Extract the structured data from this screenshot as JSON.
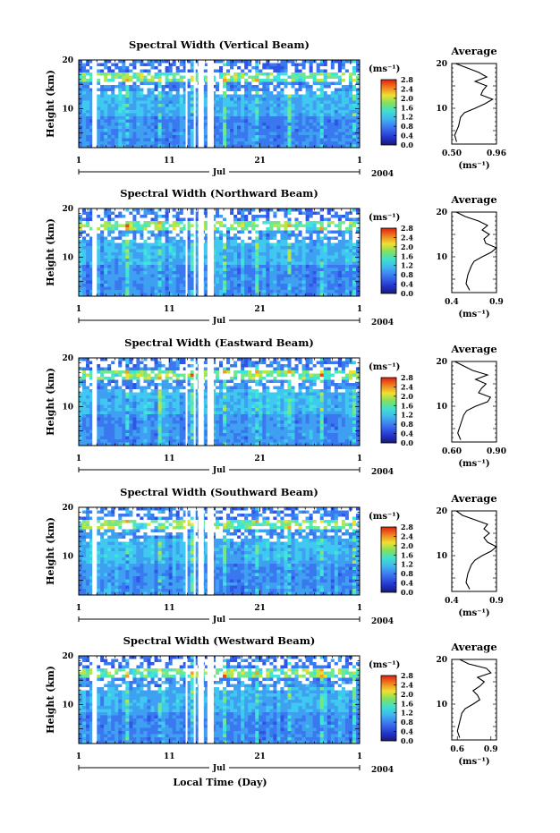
{
  "figure": {
    "xlabel": "Local Time (Day)",
    "month": "Jul",
    "year": "2004",
    "day_ticks": [
      "1",
      "11",
      "21",
      "1"
    ],
    "height_ticks": [
      "10",
      "20"
    ],
    "colorbar_unit": "(ms⁻¹)",
    "colorbar_ticks": [
      "0.0",
      "0.4",
      "0.8",
      "1.2",
      "1.6",
      "2.0",
      "2.4",
      "2.8"
    ],
    "average_title": "Average",
    "average_unit": "(ms⁻¹)"
  },
  "chart_data": [
    {
      "type": "heatmap",
      "title": "Spectral Width (Vertical Beam)",
      "ylabel": "Height (km)",
      "xlim_days": [
        1,
        32
      ],
      "ylim_km": [
        2,
        20
      ],
      "colorbar_range": [
        0.0,
        2.8
      ],
      "colormap": "dark blue - blue - cyan - green - yellow - orange - red",
      "data_gaps_days": [
        [
          2.5,
          3.0
        ],
        [
          12.8,
          13.0
        ],
        [
          13.7,
          13.9
        ],
        [
          14.2,
          14.8
        ],
        [
          15.2,
          15.9
        ]
      ],
      "average_profile": {
        "title": "Average",
        "xlabel": "(ms⁻¹)",
        "xticks": [
          "0.50",
          "0.96"
        ],
        "xlim": [
          0.5,
          0.96
        ],
        "height_km": [
          2.5,
          4,
          6,
          8,
          9,
          10,
          11,
          12,
          13,
          14,
          15,
          16,
          17,
          18,
          19,
          20
        ],
        "value": [
          0.55,
          0.53,
          0.57,
          0.59,
          0.63,
          0.74,
          0.84,
          0.92,
          0.8,
          0.82,
          0.86,
          0.74,
          0.86,
          0.78,
          0.66,
          0.54
        ]
      }
    },
    {
      "type": "heatmap",
      "title": "Spectral Width (Northward Beam)",
      "ylabel": "Height (km)",
      "xlim_days": [
        1,
        32
      ],
      "ylim_km": [
        2,
        20
      ],
      "colorbar_range": [
        0.0,
        2.8
      ],
      "data_gaps_days": [
        [
          2.5,
          3.0
        ],
        [
          12.8,
          13.0
        ],
        [
          13.7,
          13.9
        ],
        [
          14.2,
          14.8
        ],
        [
          15.2,
          15.9
        ]
      ],
      "average_profile": {
        "title": "Average",
        "xlabel": "(ms⁻¹)",
        "xticks": [
          "0.4",
          "0.9"
        ],
        "xlim": [
          0.4,
          0.9
        ],
        "height_km": [
          2.5,
          4,
          6,
          8,
          9,
          10,
          11,
          12,
          13,
          14,
          15,
          16,
          17,
          18,
          19,
          20
        ],
        "value": [
          0.6,
          0.56,
          0.58,
          0.62,
          0.65,
          0.74,
          0.84,
          0.9,
          0.78,
          0.76,
          0.82,
          0.74,
          0.8,
          0.7,
          0.55,
          0.45
        ]
      }
    },
    {
      "type": "heatmap",
      "title": "Spectral Width (Eastward Beam)",
      "ylabel": "Height (km)",
      "xlim_days": [
        1,
        32
      ],
      "ylim_km": [
        2,
        20
      ],
      "colorbar_range": [
        0.0,
        2.8
      ],
      "data_gaps_days": [
        [
          2.5,
          3.0
        ],
        [
          12.8,
          13.0
        ],
        [
          13.7,
          13.9
        ],
        [
          14.2,
          14.8
        ],
        [
          15.2,
          15.9
        ]
      ],
      "average_profile": {
        "title": "Average",
        "xlabel": "(ms⁻¹)",
        "xticks": [
          "0.60",
          "0.90"
        ],
        "xlim": [
          0.6,
          0.9
        ],
        "height_km": [
          2.5,
          4,
          6,
          8,
          9,
          10,
          11,
          12,
          13,
          14,
          15,
          16,
          17,
          18,
          19,
          20
        ],
        "value": [
          0.66,
          0.64,
          0.66,
          0.68,
          0.7,
          0.76,
          0.84,
          0.86,
          0.78,
          0.8,
          0.83,
          0.76,
          0.84,
          0.74,
          0.68,
          0.62
        ]
      }
    },
    {
      "type": "heatmap",
      "title": "Spectral Width (Southward Beam)",
      "ylabel": "Height (km)",
      "xlim_days": [
        1,
        32
      ],
      "ylim_km": [
        2,
        20
      ],
      "colorbar_range": [
        0.0,
        2.8
      ],
      "data_gaps_days": [
        [
          2.5,
          3.0
        ],
        [
          12.8,
          13.0
        ],
        [
          13.7,
          13.9
        ],
        [
          14.2,
          14.8
        ],
        [
          15.2,
          15.9
        ]
      ],
      "average_profile": {
        "title": "Average",
        "xlabel": "(ms⁻¹)",
        "xticks": [
          "0.4",
          "0.9"
        ],
        "xlim": [
          0.4,
          0.9
        ],
        "height_km": [
          2.5,
          4,
          6,
          8,
          9,
          10,
          11,
          12,
          13,
          14,
          15,
          16,
          17,
          18,
          19,
          20
        ],
        "value": [
          0.6,
          0.56,
          0.58,
          0.62,
          0.66,
          0.74,
          0.84,
          0.9,
          0.8,
          0.76,
          0.82,
          0.76,
          0.8,
          0.66,
          0.52,
          0.45
        ]
      }
    },
    {
      "type": "heatmap",
      "title": "Spectral Width (Westward Beam)",
      "ylabel": "Height (km)",
      "xlim_days": [
        1,
        32
      ],
      "ylim_km": [
        2,
        20
      ],
      "colorbar_range": [
        0.0,
        2.8
      ],
      "data_gaps_days": [
        [
          2.5,
          3.0
        ],
        [
          12.8,
          13.0
        ],
        [
          13.7,
          13.9
        ],
        [
          14.2,
          14.8
        ],
        [
          15.2,
          15.9
        ]
      ],
      "average_profile": {
        "title": "Average",
        "xlabel": "(ms⁻¹)",
        "xticks": [
          "0.6",
          "0.9"
        ],
        "xlim": [
          0.55,
          0.95
        ],
        "height_km": [
          2.5,
          4,
          6,
          8,
          9,
          10,
          11,
          12,
          13,
          14,
          15,
          16,
          17,
          18,
          19,
          20
        ],
        "value": [
          0.62,
          0.6,
          0.62,
          0.64,
          0.67,
          0.74,
          0.8,
          0.78,
          0.74,
          0.8,
          0.84,
          0.78,
          0.9,
          0.86,
          0.7,
          0.62
        ]
      }
    }
  ]
}
